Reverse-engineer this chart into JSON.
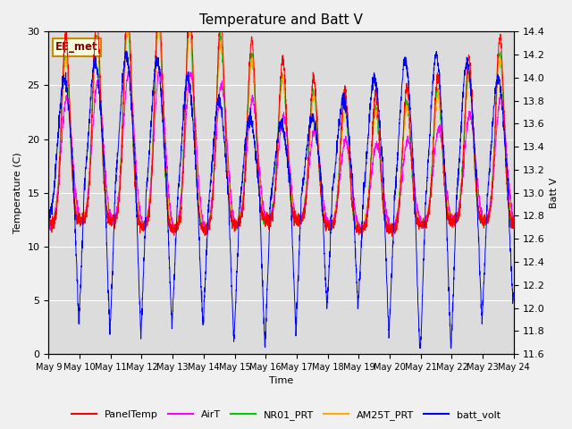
{
  "title": "Temperature and Batt V",
  "xlabel": "Time",
  "ylabel_left": "Temperature (C)",
  "ylabel_right": "Batt V",
  "ylim_left": [
    0,
    30
  ],
  "ylim_right": [
    11.6,
    14.4
  ],
  "x_tick_labels": [
    "May 9",
    "May 10",
    "May 11",
    "May 12",
    "May 13",
    "May 14",
    "May 15",
    "May 16",
    "May 17",
    "May 18",
    "May 19",
    "May 20",
    "May 21",
    "May 22",
    "May 23",
    "May 24"
  ],
  "legend_entries": [
    "PanelTemp",
    "AirT",
    "NR01_PRT",
    "AM25T_PRT",
    "batt_volt"
  ],
  "legend_colors": [
    "#ff0000",
    "#ff00ff",
    "#00cc00",
    "#ffaa00",
    "#0000ff"
  ],
  "annotation_text": "EE_met",
  "bg_color": "#dcdcdc",
  "fig_bg_color": "#f0f0f0",
  "grid_color": "#ffffff",
  "title_fontsize": 11,
  "label_fontsize": 8,
  "tick_fontsize": 8
}
